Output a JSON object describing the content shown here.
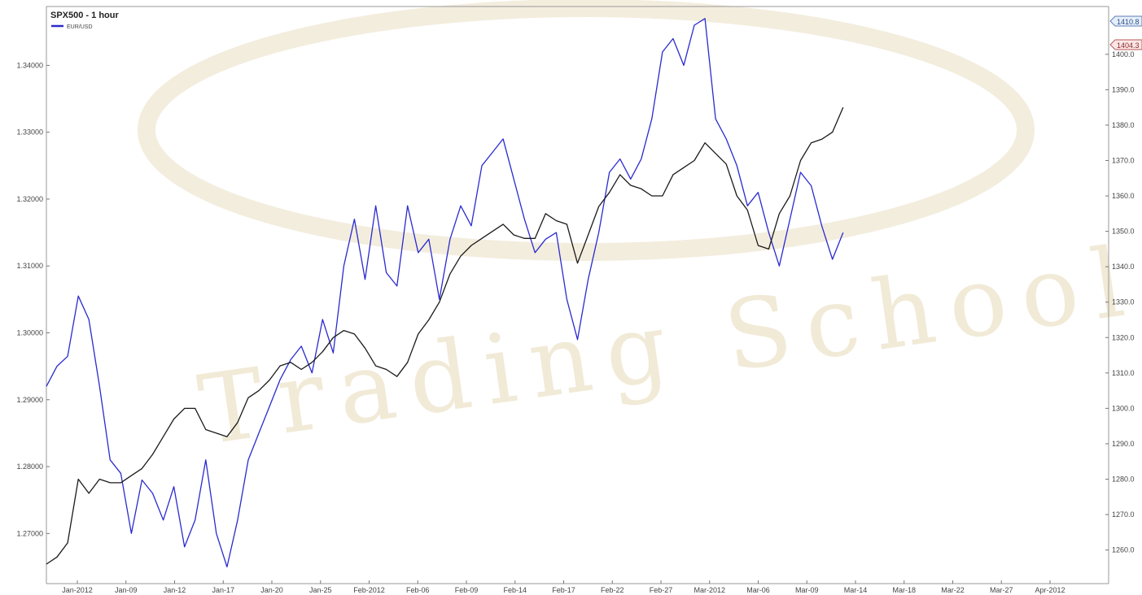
{
  "chart_data": {
    "type": "line",
    "title": "SPX500 - 1 hour",
    "legend": {
      "placement": "top-left",
      "entries": [
        {
          "name": "EUR/USD",
          "color": "#2a2ad0"
        }
      ]
    },
    "watermark": {
      "text": "Trading School",
      "color": "#f1ead7"
    },
    "grid": false,
    "x_tick_labels": [
      "Jan-2012",
      "Jan-09",
      "Jan-12",
      "Jan-17",
      "Jan-20",
      "Jan-25",
      "Feb-2012",
      "Feb-06",
      "Feb-09",
      "Feb-14",
      "Feb-17",
      "Feb-22",
      "Feb-27",
      "Mar-2012",
      "Mar-06",
      "Mar-09",
      "Mar-14",
      "Mar-18",
      "Mar-22",
      "Mar-27",
      "Apr-2012"
    ],
    "y_left": {
      "ylim": [
        1.2625,
        1.3488
      ],
      "ticks": [
        "1.27000",
        "1.28000",
        "1.29000",
        "1.30000",
        "1.31000",
        "1.32000",
        "1.33000",
        "1.34000"
      ]
    },
    "y_right": {
      "ylim": [
        1250.5,
        1413.5
      ],
      "ticks": [
        "1260.0",
        "1270.0",
        "1280.0",
        "1290.0",
        "1300.0",
        "1310.0",
        "1320.0",
        "1330.0",
        "1340.0",
        "1350.0",
        "1360.0",
        "1370.0",
        "1380.0",
        "1390.0",
        "1400.0"
      ]
    },
    "last_value_tags": {
      "spx": "1410.8",
      "eurusd": "1404.3"
    },
    "x_range": [
      0,
      100
    ],
    "series": [
      {
        "name": "EUR/USD",
        "axis": "left",
        "color": "#2a2ad0",
        "x": [
          0,
          1,
          2,
          3,
          4,
          5,
          6,
          7,
          8,
          9,
          10,
          11,
          12,
          13,
          14,
          15,
          16,
          17,
          18,
          19,
          20,
          21,
          22,
          23,
          24,
          25,
          26,
          27,
          28,
          29,
          30,
          31,
          32,
          33,
          34,
          35,
          36,
          37,
          38,
          39,
          40,
          41,
          42,
          43,
          44,
          45,
          46,
          47,
          48,
          49,
          50,
          51,
          52,
          53,
          54,
          55,
          56,
          57,
          58,
          59,
          60,
          61,
          62,
          63,
          64,
          65,
          66,
          67,
          68,
          69,
          70,
          71,
          72,
          73,
          74,
          75
        ],
        "values": [
          1.292,
          1.295,
          1.2965,
          1.3055,
          1.302,
          1.292,
          1.281,
          1.279,
          1.27,
          1.278,
          1.276,
          1.272,
          1.277,
          1.268,
          1.272,
          1.281,
          1.27,
          1.265,
          1.272,
          1.281,
          1.285,
          1.289,
          1.293,
          1.296,
          1.298,
          1.294,
          1.302,
          1.297,
          1.31,
          1.317,
          1.308,
          1.319,
          1.309,
          1.307,
          1.319,
          1.312,
          1.314,
          1.305,
          1.314,
          1.319,
          1.316,
          1.325,
          1.327,
          1.329,
          1.323,
          1.317,
          1.312,
          1.314,
          1.315,
          1.305,
          1.299,
          1.308,
          1.315,
          1.324,
          1.326,
          1.323,
          1.326,
          1.332,
          1.342,
          1.344,
          1.34,
          1.346,
          1.347,
          1.332,
          1.329,
          1.325,
          1.319,
          1.321,
          1.315,
          1.31,
          1.317,
          1.324,
          1.322,
          1.316,
          1.311,
          1.315
        ]
      },
      {
        "name": "SPX500",
        "axis": "right",
        "color": "#1a1a1a",
        "x": [
          0,
          1,
          2,
          3,
          4,
          5,
          6,
          7,
          8,
          9,
          10,
          11,
          12,
          13,
          14,
          15,
          16,
          17,
          18,
          19,
          20,
          21,
          22,
          23,
          24,
          25,
          26,
          27,
          28,
          29,
          30,
          31,
          32,
          33,
          34,
          35,
          36,
          37,
          38,
          39,
          40,
          41,
          42,
          43,
          44,
          45,
          46,
          47,
          48,
          49,
          50,
          51,
          52,
          53,
          54,
          55,
          56,
          57,
          58,
          59,
          60,
          61,
          62,
          63,
          64,
          65,
          66,
          67,
          68,
          69,
          70,
          71,
          72,
          73,
          74,
          75
        ],
        "values": [
          1256,
          1258,
          1262,
          1280,
          1276,
          1280,
          1279,
          1279,
          1281,
          1283,
          1287,
          1292,
          1297,
          1300,
          1300,
          1294,
          1293,
          1292,
          1296,
          1303,
          1305,
          1308,
          1312,
          1313,
          1311,
          1313,
          1316,
          1320,
          1322,
          1321,
          1317,
          1312,
          1311,
          1309,
          1313,
          1321,
          1325,
          1330,
          1338,
          1343,
          1346,
          1348,
          1350,
          1352,
          1349,
          1348,
          1348,
          1355,
          1353,
          1352,
          1341,
          1349,
          1357,
          1361,
          1366,
          1363,
          1362,
          1360,
          1360,
          1366,
          1368,
          1370,
          1375,
          1372,
          1369,
          1360,
          1356,
          1346,
          1345,
          1355,
          1360,
          1370,
          1375,
          1376,
          1378,
          1385
        ]
      }
    ]
  }
}
